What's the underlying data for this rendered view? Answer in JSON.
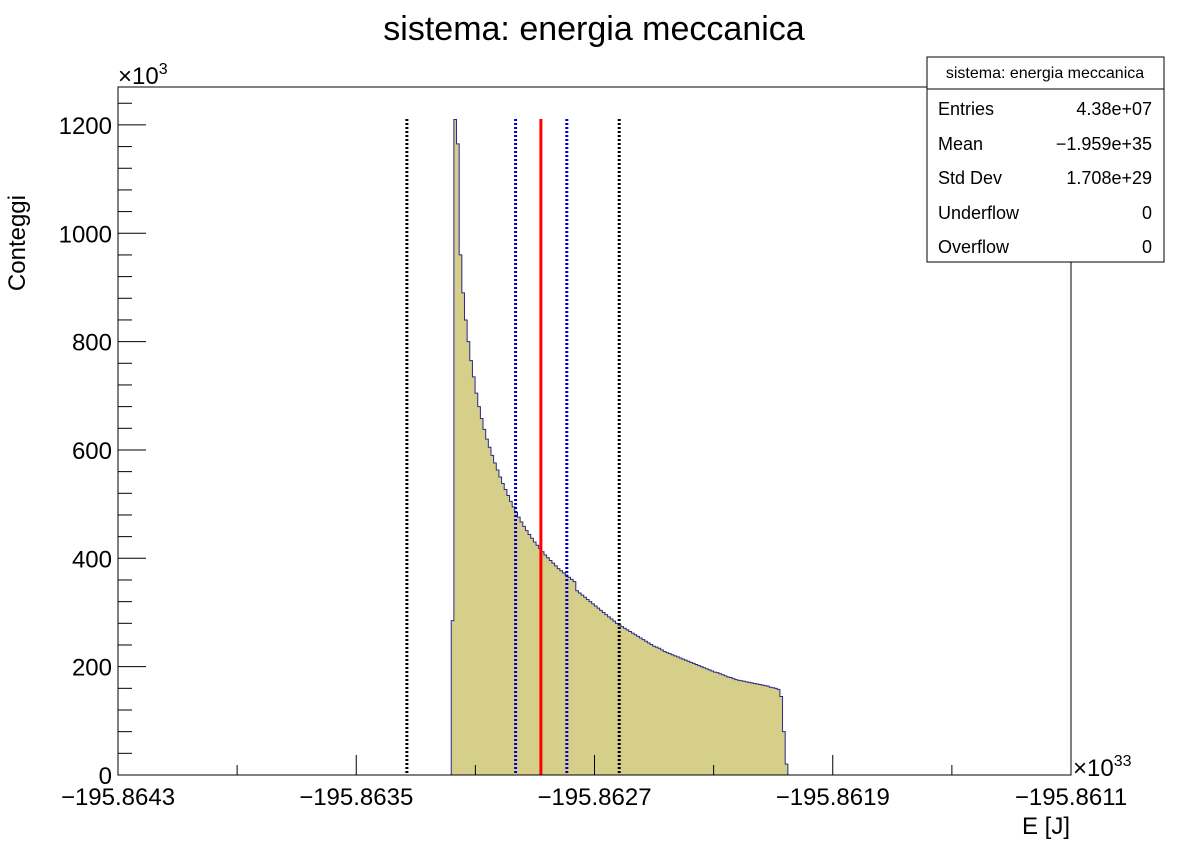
{
  "chart_data": {
    "type": "bar",
    "title": "sistema: energia meccanica",
    "xlabel": "E [J]",
    "ylabel": "Conteggi",
    "x_multiplier": "×10",
    "x_exponent": "33",
    "y_multiplier": "×10",
    "y_exponent": "3",
    "xlim": [
      -195.8643,
      -195.8611
    ],
    "ylim": [
      0,
      1270
    ],
    "x_ticks": [
      -195.8643,
      -195.8635,
      -195.8627,
      -195.8619,
      -195.8611
    ],
    "x_tick_labels": [
      "−195.8643",
      "−195.8635",
      "−195.8627",
      "−195.8619",
      "−195.8611"
    ],
    "y_ticks": [
      0,
      200,
      400,
      600,
      800,
      1000,
      1200
    ],
    "y_tick_labels": [
      "0",
      "200",
      "400",
      "600",
      "800",
      "1000",
      "1200"
    ],
    "fill_color": "#d6cf8a",
    "line_color": "#2a2a8a",
    "histogram": {
      "first_edge": -195.86319,
      "bin_width": 8.9e-06,
      "values": [
        0,
        285,
        1210,
        1165,
        960,
        890,
        840,
        800,
        765,
        735,
        705,
        680,
        658,
        638,
        620,
        605,
        590,
        576,
        563,
        550,
        538,
        527,
        516,
        505,
        495,
        485,
        476,
        467,
        459,
        451,
        444,
        437,
        430,
        424,
        418,
        412,
        406,
        401,
        396,
        391,
        386,
        381,
        377,
        373,
        369,
        365,
        361,
        357,
        340,
        336,
        332,
        328,
        324,
        320,
        316,
        312,
        308,
        304,
        300,
        296,
        292,
        288,
        284,
        280,
        277,
        274,
        271,
        268,
        265,
        262,
        259,
        256,
        253,
        250,
        247,
        244,
        241,
        238,
        236,
        234,
        231,
        228,
        226,
        224,
        222,
        220,
        218,
        216,
        214,
        212,
        210,
        208,
        206,
        204,
        202,
        200,
        198,
        196,
        194,
        192,
        190,
        189,
        187,
        185,
        183,
        181,
        180,
        178,
        176,
        175,
        174,
        173,
        172,
        171,
        170,
        169,
        168,
        167,
        166,
        165,
        164,
        162,
        161,
        160,
        158,
        145,
        80,
        20
      ]
    },
    "markers": [
      {
        "x": -195.86333,
        "color": "#000000",
        "style": "dotted"
      },
      {
        "x": -195.862965,
        "color": "#0000cc",
        "style": "dotted"
      },
      {
        "x": -195.86288,
        "color": "#ff0000",
        "style": "solid"
      },
      {
        "x": -195.862793,
        "color": "#0000cc",
        "style": "dotted"
      },
      {
        "x": -195.862617,
        "color": "#000000",
        "style": "dotted"
      }
    ],
    "stats_box": {
      "title": "sistema: energia meccanica",
      "rows": [
        {
          "label": "Entries",
          "value": "4.38e+07"
        },
        {
          "label": "Mean",
          "value": "−1.959e+35"
        },
        {
          "label": "Std Dev",
          "value": "1.708e+29"
        },
        {
          "label": "Underflow",
          "value": "0"
        },
        {
          "label": "Overflow",
          "value": "0"
        }
      ]
    }
  }
}
